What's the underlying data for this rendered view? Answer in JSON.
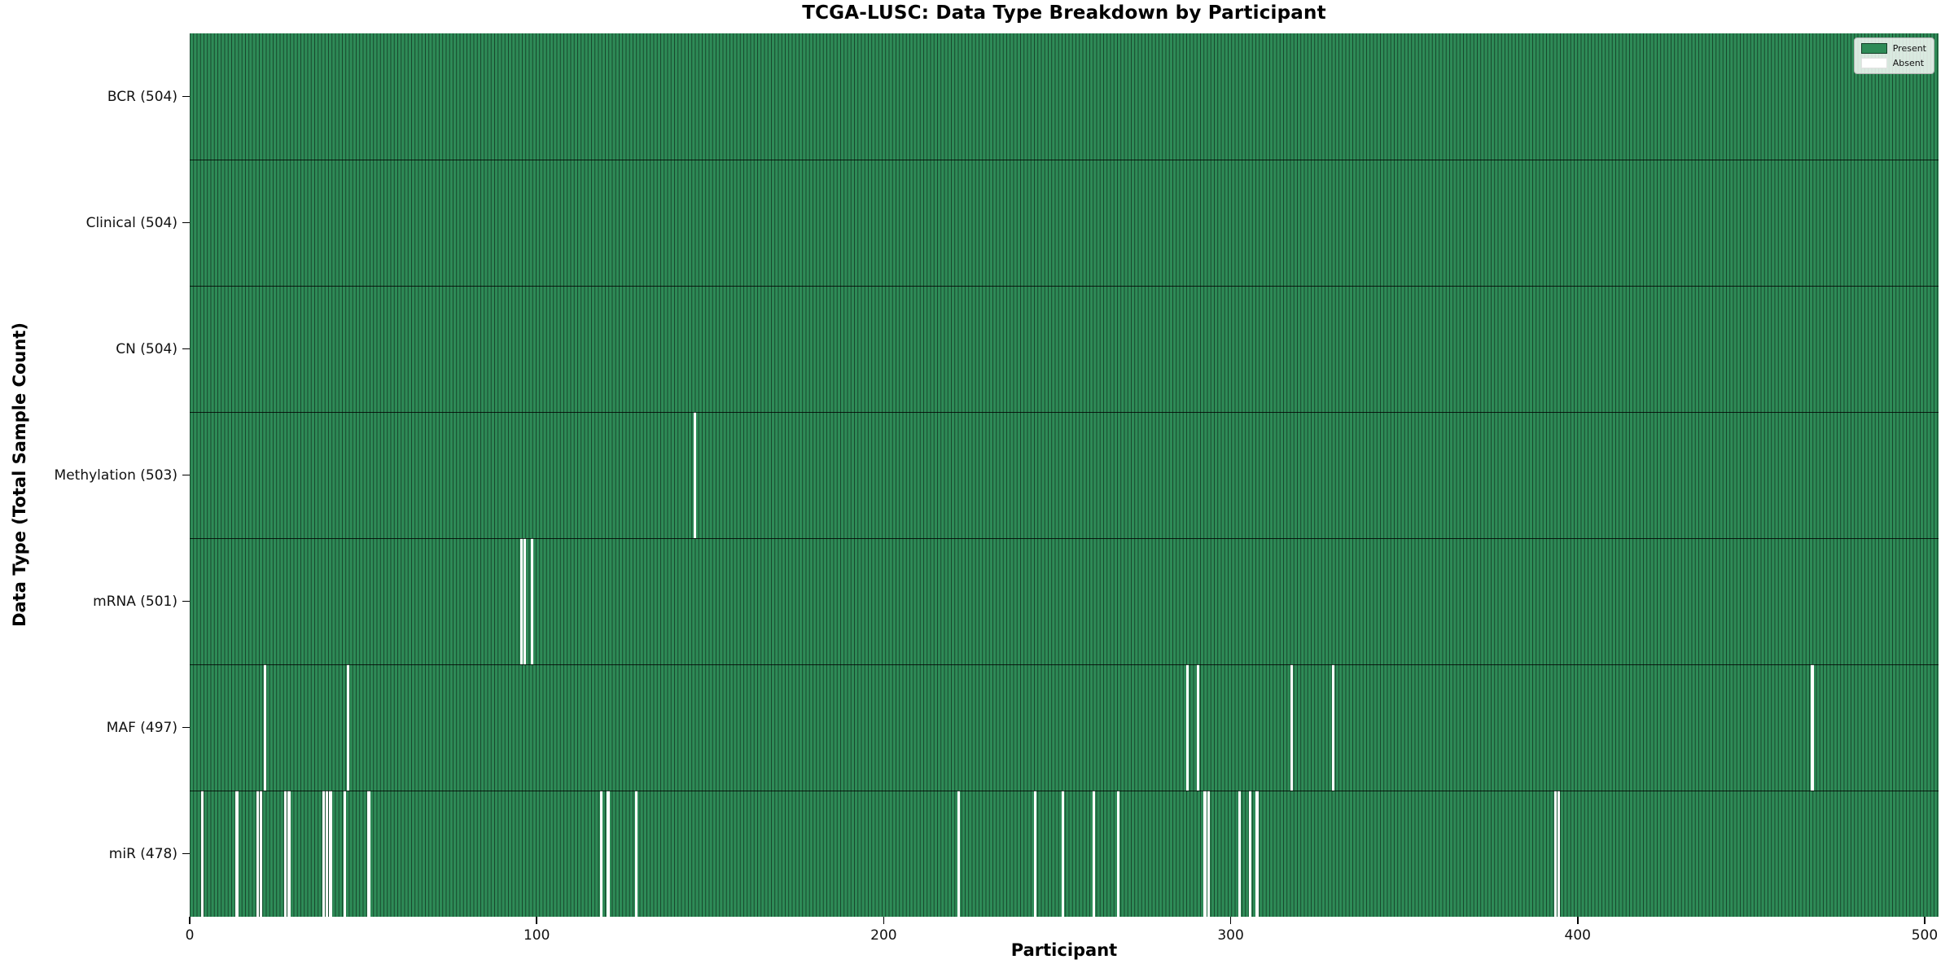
{
  "chart_data": {
    "type": "heatmap",
    "title": "TCGA-LUSC: Data Type Breakdown by Participant",
    "xlabel": "Participant",
    "ylabel": "Data Type (Total Sample Count)",
    "n_participants": 504,
    "x_range": [
      0,
      504
    ],
    "x_ticks": [
      0,
      100,
      200,
      300,
      400,
      500
    ],
    "legend": [
      {
        "label": "Present",
        "color": "#2e8b57"
      },
      {
        "label": "Absent",
        "color": "#ffffff"
      }
    ],
    "colors": {
      "present_fill": "#2e8b57",
      "bar_edge": "rgba(0,0,0,0.5)",
      "row_separator": "rgba(0,0,0,0.8)",
      "absent_fill": "#ffffff"
    },
    "rows": [
      {
        "data_type": "BCR",
        "label": "BCR (504)",
        "present_count": 504,
        "absent_participants": []
      },
      {
        "data_type": "Clinical",
        "label": "Clinical (504)",
        "present_count": 504,
        "absent_participants": []
      },
      {
        "data_type": "CN",
        "label": "CN (504)",
        "present_count": 504,
        "absent_participants": []
      },
      {
        "data_type": "Methylation",
        "label": "Methylation (503)",
        "present_count": 503,
        "absent_participants": [
          145
        ]
      },
      {
        "data_type": "mRNA",
        "label": "mRNA (501)",
        "present_count": 501,
        "absent_participants": [
          95,
          96,
          98
        ]
      },
      {
        "data_type": "MAF",
        "label": "MAF (497)",
        "present_count": 497,
        "absent_participants": [
          21,
          45,
          287,
          290,
          317,
          329,
          467
        ]
      },
      {
        "data_type": "miR",
        "label": "miR (478)",
        "present_count": 478,
        "absent_participants": [
          3,
          13,
          19,
          20,
          27,
          28,
          38,
          39,
          40,
          44,
          51,
          118,
          120,
          128,
          221,
          243,
          251,
          260,
          267,
          292,
          293,
          302,
          305,
          307,
          393,
          394
        ]
      }
    ]
  }
}
